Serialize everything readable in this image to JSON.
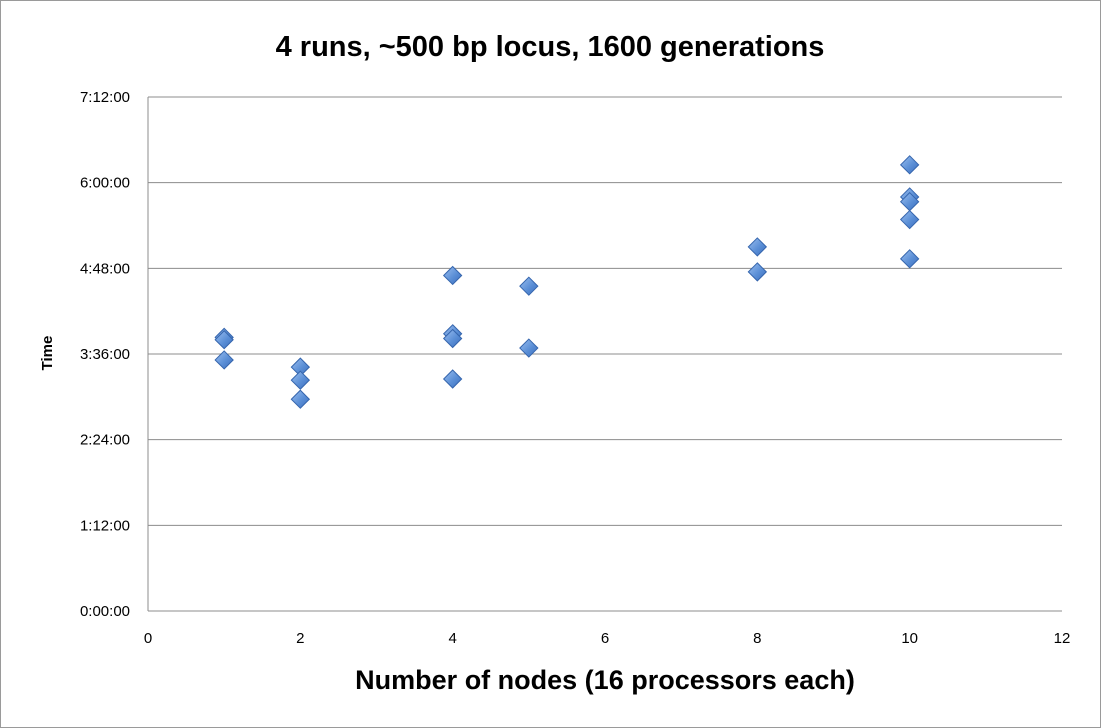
{
  "chart_data": {
    "type": "scatter",
    "title": "4 runs, ~500 bp locus, 1600 generations",
    "xlabel": "Number of nodes (16 processors each)",
    "ylabel": "Time",
    "xlim": [
      0,
      12
    ],
    "ylim": [
      "0:00:00",
      "7:12:00"
    ],
    "xticks": [
      "0",
      "2",
      "4",
      "6",
      "8",
      "10",
      "12"
    ],
    "yticks": [
      "0:00:00",
      "1:12:00",
      "2:24:00",
      "3:36:00",
      "4:48:00",
      "6:00:00",
      "7:12:00"
    ],
    "grid": "horizontal",
    "marker": "diamond",
    "marker_color": "#5b8fd6",
    "series": [
      {
        "points": [
          {
            "x": 1,
            "y": "3:50:00"
          },
          {
            "x": 1,
            "y": "3:48:00"
          },
          {
            "x": 1,
            "y": "3:31:00"
          },
          {
            "x": 2,
            "y": "3:25:00"
          },
          {
            "x": 2,
            "y": "3:14:00"
          },
          {
            "x": 2,
            "y": "2:58:00"
          },
          {
            "x": 4,
            "y": "4:42:00"
          },
          {
            "x": 4,
            "y": "3:53:00"
          },
          {
            "x": 4,
            "y": "3:49:00"
          },
          {
            "x": 4,
            "y": "3:15:00"
          },
          {
            "x": 5,
            "y": "4:33:00"
          },
          {
            "x": 5,
            "y": "3:41:00"
          },
          {
            "x": 8,
            "y": "5:06:00"
          },
          {
            "x": 8,
            "y": "4:45:00"
          },
          {
            "x": 10,
            "y": "6:15:00"
          },
          {
            "x": 10,
            "y": "5:48:00"
          },
          {
            "x": 10,
            "y": "5:44:00"
          },
          {
            "x": 10,
            "y": "5:29:00"
          },
          {
            "x": 10,
            "y": "4:56:00"
          }
        ]
      }
    ]
  }
}
